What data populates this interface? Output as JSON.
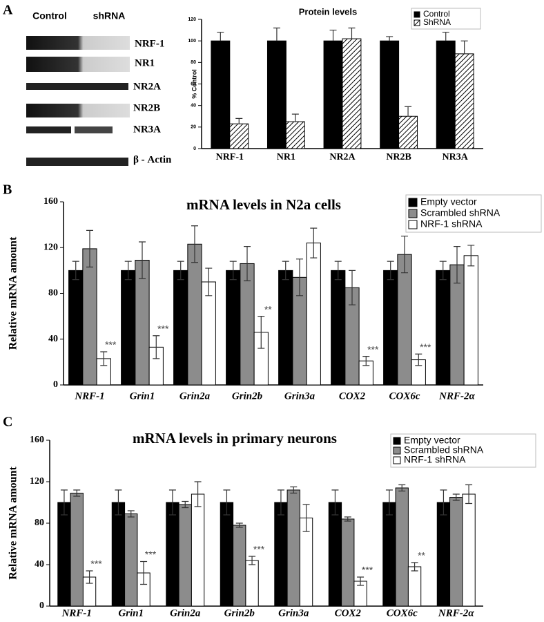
{
  "figure": {
    "panel_labels": [
      "A",
      "B",
      "C"
    ],
    "blot": {
      "column_labels": [
        "Control",
        "shRNA"
      ],
      "row_labels": [
        "NRF-1",
        "NR1",
        "NR2A",
        "NR2B",
        "NR3A",
        "β - Actin"
      ]
    }
  },
  "chart_data": [
    {
      "type": "bar",
      "title": "Protein levels",
      "y_label": "% Control",
      "categories": [
        "NRF-1",
        "NR1",
        "NR2A",
        "NR2B",
        "NR3A"
      ],
      "series": [
        {
          "name": "Control",
          "color": "#000000",
          "values": [
            100,
            100,
            100,
            100,
            100
          ],
          "errors": [
            8,
            12,
            10,
            4,
            8
          ]
        },
        {
          "name": "ShRNA",
          "color": "#000000",
          "pattern": "hatch",
          "values": [
            23,
            25,
            102,
            30,
            88
          ],
          "errors": [
            5,
            7,
            10,
            9,
            12
          ]
        }
      ],
      "ylim": [
        0,
        120
      ],
      "yticks": [
        0,
        20,
        40,
        60,
        80,
        100,
        120
      ],
      "legend": "upper right"
    },
    {
      "type": "bar",
      "title": "mRNA levels in N2a cells",
      "y_label": "Relative mRNA amount",
      "category_style": "italic",
      "categories": [
        "NRF-1",
        "Grin1",
        "Grin2a",
        "Grin2b",
        "Grin3a",
        "COX2",
        "COX6c",
        "NRF-2α"
      ],
      "series": [
        {
          "name": "Empty vector",
          "color": "#000000",
          "values": [
            100,
            100,
            100,
            100,
            100,
            100,
            100,
            100
          ],
          "errors": [
            8,
            8,
            8,
            8,
            8,
            8,
            8,
            8
          ]
        },
        {
          "name": "Scrambled shRNA",
          "color": "#8c8c8c",
          "values": [
            119,
            109,
            123,
            106,
            94,
            85,
            114,
            105
          ],
          "errors": [
            16,
            16,
            16,
            15,
            16,
            15,
            16,
            16
          ]
        },
        {
          "name": "NRF-1 shRNA",
          "color": "#ffffff",
          "values": [
            23,
            33,
            90,
            46,
            124,
            21,
            22,
            113
          ],
          "errors": [
            6,
            10,
            12,
            14,
            13,
            4,
            5,
            9
          ],
          "annotations": [
            "***",
            "***",
            null,
            "**",
            null,
            "***",
            "***",
            null
          ]
        }
      ],
      "ylim": [
        0,
        160
      ],
      "yticks": [
        0,
        40,
        80,
        120,
        160
      ],
      "legend": "upper right"
    },
    {
      "type": "bar",
      "title": "mRNA levels in primary neurons",
      "y_label": "Relative mRNA amount",
      "category_style": "italic",
      "categories": [
        "NRF-1",
        "Grin1",
        "Grin2a",
        "Grin2b",
        "Grin3a",
        "COX2",
        "COX6c",
        "NRF-2α"
      ],
      "series": [
        {
          "name": "Empty vector",
          "color": "#000000",
          "values": [
            100,
            100,
            100,
            100,
            100,
            100,
            100,
            100
          ],
          "errors": [
            12,
            12,
            12,
            12,
            12,
            12,
            12,
            12
          ]
        },
        {
          "name": "Scrambled shRNA",
          "color": "#8c8c8c",
          "values": [
            109,
            89,
            98,
            78,
            112,
            84,
            114,
            105
          ],
          "errors": [
            3,
            3,
            3,
            2,
            3,
            2,
            3,
            3
          ]
        },
        {
          "name": "NRF-1 shRNA",
          "color": "#ffffff",
          "values": [
            28,
            32,
            108,
            44,
            85,
            24,
            38,
            108
          ],
          "errors": [
            6,
            11,
            12,
            4,
            13,
            4,
            4,
            9
          ],
          "annotations": [
            "***",
            "***",
            null,
            "***",
            null,
            "***",
            "**",
            null
          ]
        }
      ],
      "ylim": [
        0,
        160
      ],
      "yticks": [
        0,
        40,
        80,
        120,
        160
      ],
      "legend": "upper right"
    }
  ]
}
